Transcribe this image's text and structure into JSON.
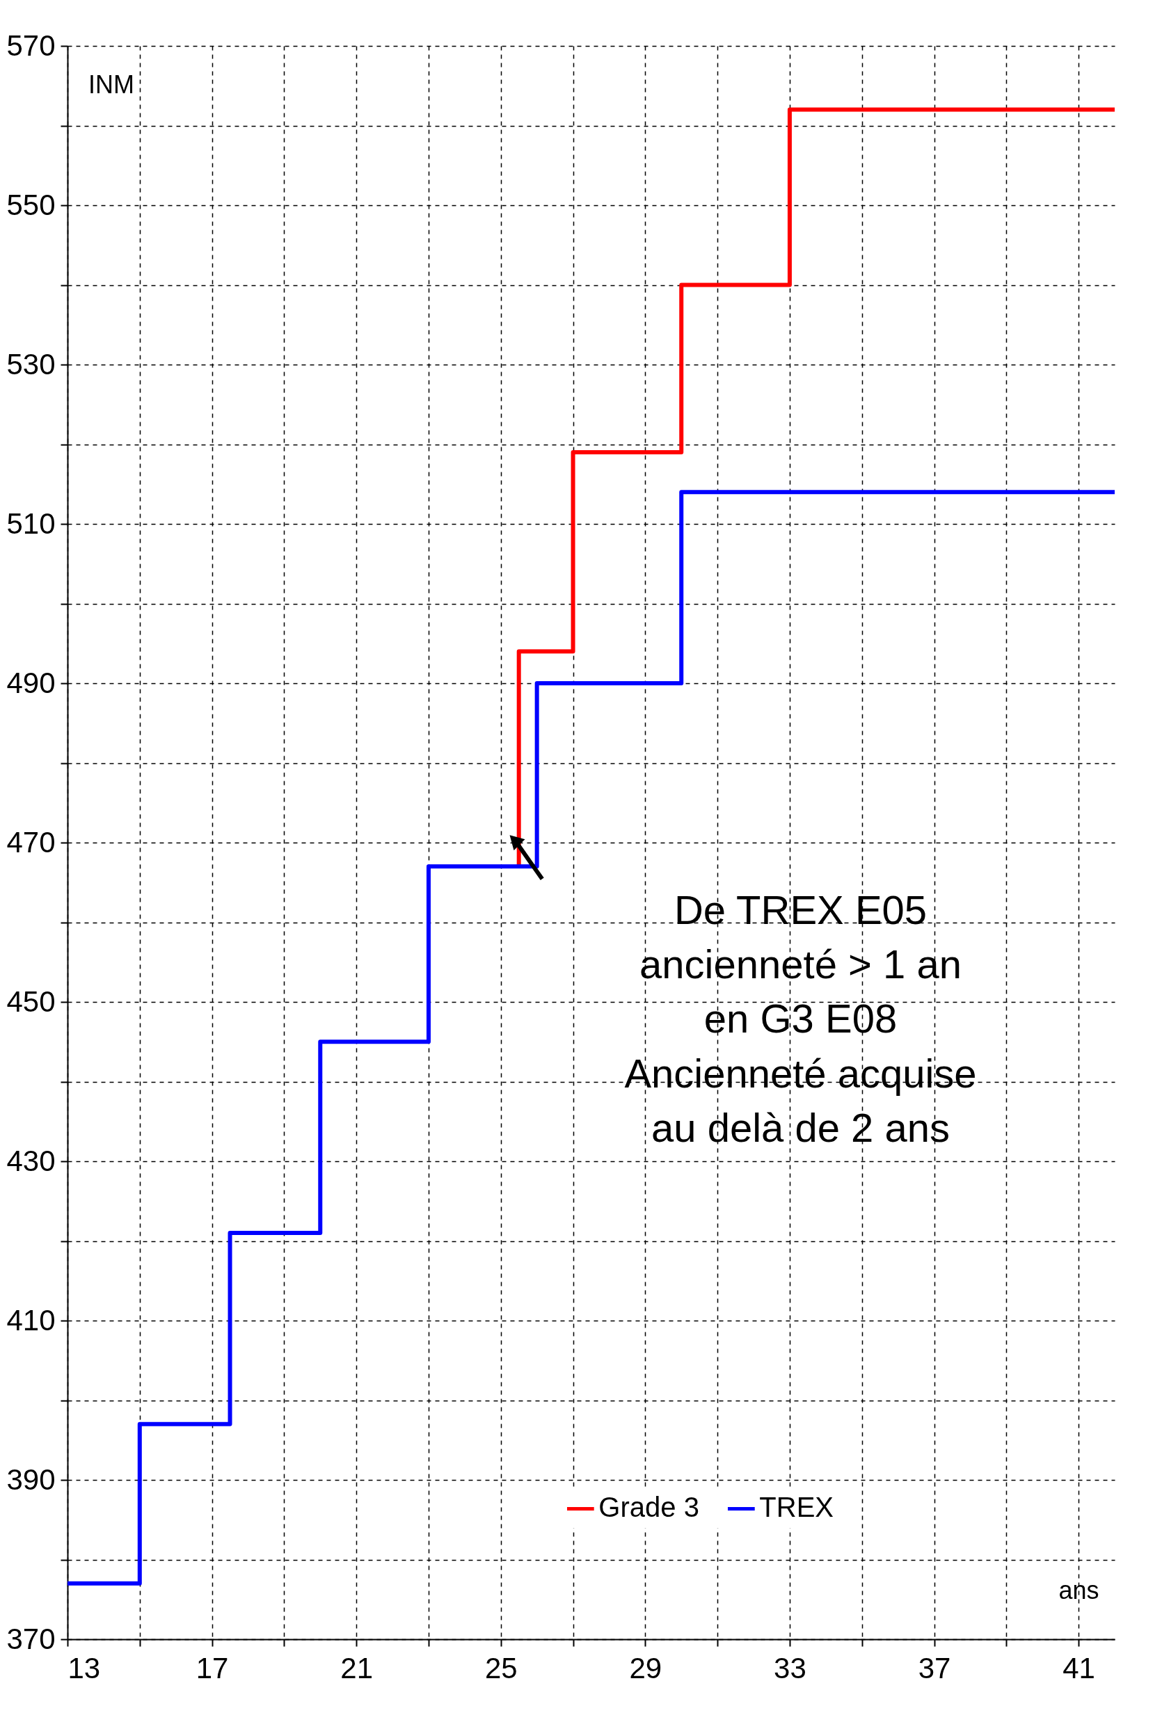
{
  "chart_data": {
    "type": "step",
    "xlabel": "ans",
    "ylabel": "INM",
    "xlim": [
      13,
      42
    ],
    "ylim": [
      370,
      570
    ],
    "xticks": [
      13,
      {
        "value": 15,
        "label": null
      },
      17,
      {
        "value": 19,
        "label": null
      },
      21,
      {
        "value": 23,
        "label": null
      },
      25,
      {
        "value": 27,
        "label": null
      },
      29,
      {
        "value": 31,
        "label": null
      },
      33,
      {
        "value": 35,
        "label": null
      },
      37,
      {
        "value": 39,
        "label": null
      },
      41
    ],
    "yticks": [
      370,
      {
        "value": 380,
        "label": null
      },
      390,
      {
        "value": 400,
        "label": null
      },
      410,
      {
        "value": 420,
        "label": null
      },
      430,
      {
        "value": 440,
        "label": null
      },
      450,
      {
        "value": 460,
        "label": null
      },
      470,
      {
        "value": 480,
        "label": null
      },
      490,
      {
        "value": 500,
        "label": null
      },
      510,
      {
        "value": 520,
        "label": null
      },
      530,
      {
        "value": 540,
        "label": null
      },
      550,
      {
        "value": 560,
        "label": null
      },
      570
    ],
    "grid": true,
    "legend": "bottom",
    "line_style": "solid",
    "series": [
      {
        "name": "Grade 3",
        "color": "#ff0000",
        "x": [
          25.5,
          25.5,
          27,
          30,
          33,
          42
        ],
        "values": [
          467,
          494,
          519,
          540,
          562,
          562
        ]
      },
      {
        "name": "TREX",
        "color": "#0000ff",
        "x": [
          13,
          15,
          17.5,
          20,
          23,
          26,
          30,
          42
        ],
        "values": [
          377,
          397,
          421,
          445,
          467,
          490,
          514,
          514
        ]
      }
    ],
    "annotations": [
      "De TREX E05\nancienneté > 1 an\nen G3 E08\nAncienneté acquise\nau delà de 2 ans"
    ]
  }
}
